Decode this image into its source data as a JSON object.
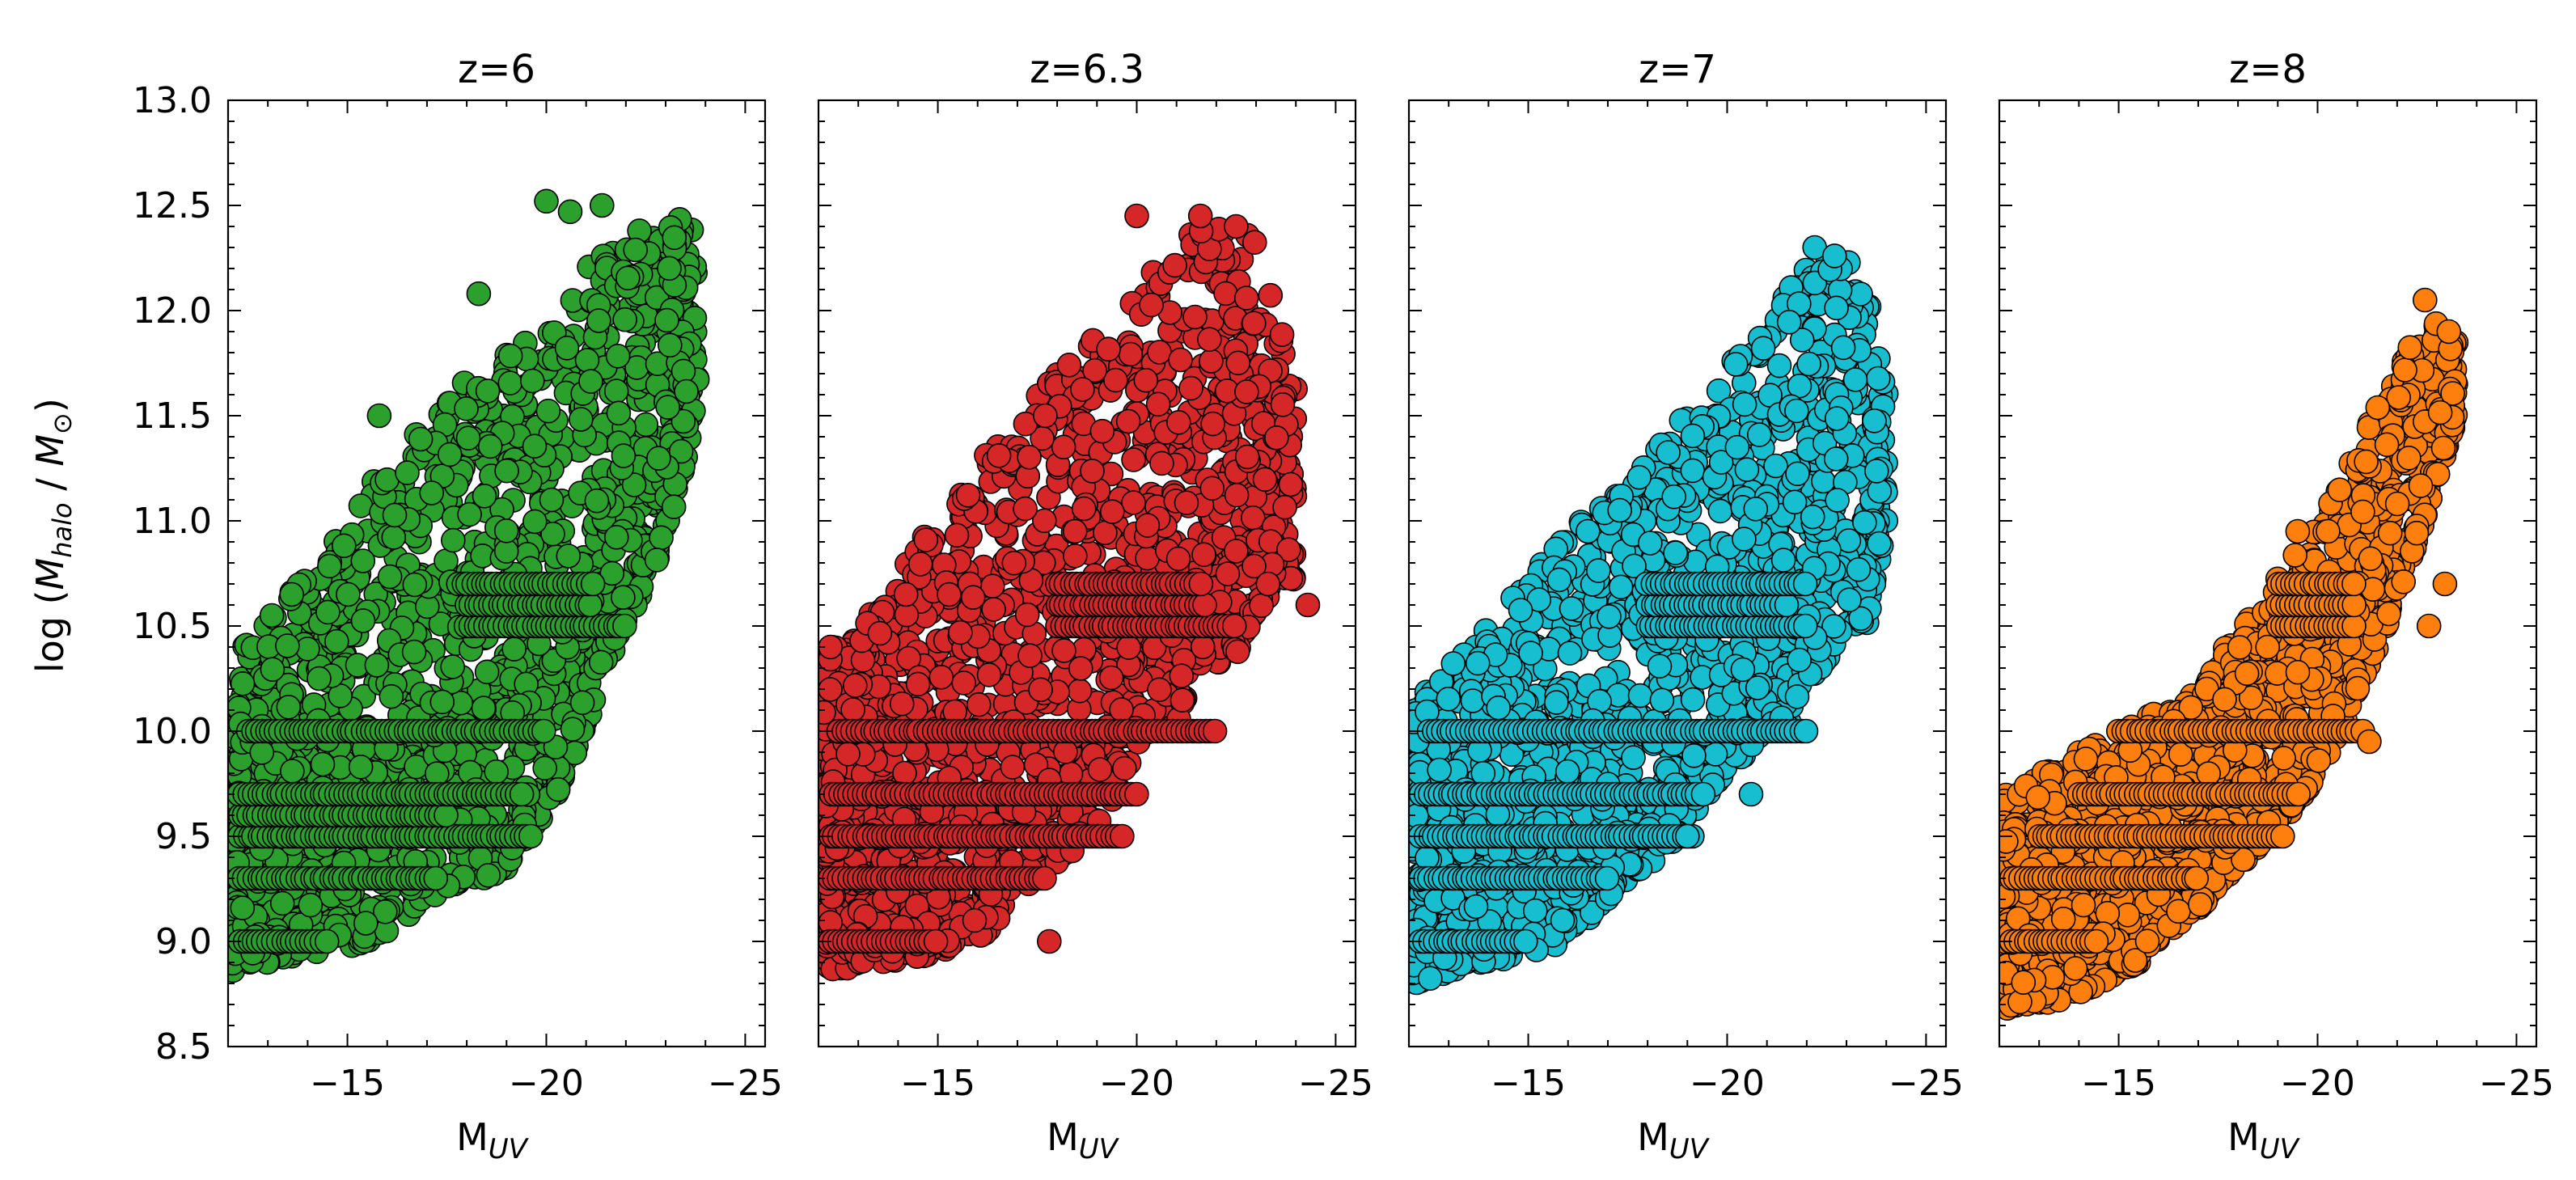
{
  "chart_data": [
    {
      "type": "scatter",
      "title": "z=6",
      "xlabel": "M_UV",
      "ylabel": "log(M_halo/M_⊙)",
      "xlim": [
        -12,
        -25.5
      ],
      "ylim": [
        8.5,
        13.0
      ],
      "xticks": [
        -15,
        -20,
        -25
      ],
      "yticks": [
        8.5,
        9.0,
        9.5,
        10.0,
        10.5,
        11.0,
        11.5,
        12.0,
        12.5,
        13.0
      ],
      "color": "#2ca02c",
      "approx_points": {
        "x": [
          -12.1,
          -12.5,
          -13.0,
          -13.5,
          -14.0,
          -14.5,
          -15.0,
          -15.5,
          -16.0,
          -16.5,
          -17.0,
          -17.5,
          -18.0,
          -18.5,
          -19.0,
          -19.5,
          -20.0,
          -20.5,
          -21.0,
          -21.5,
          -22.0,
          -22.5,
          -23.0,
          -23.5,
          -23.8
        ],
        "y_low": [
          8.85,
          8.9,
          8.9,
          8.92,
          8.95,
          8.95,
          8.97,
          9.0,
          9.0,
          9.1,
          9.2,
          9.25,
          9.3,
          9.3,
          9.35,
          9.5,
          9.6,
          9.8,
          10.0,
          10.3,
          10.5,
          10.7,
          10.9,
          11.3,
          11.6
        ],
        "y_high": [
          10.3,
          10.45,
          10.55,
          10.65,
          10.75,
          10.85,
          11.0,
          11.2,
          11.3,
          11.35,
          11.5,
          11.55,
          11.7,
          11.7,
          11.8,
          11.85,
          11.9,
          12.0,
          12.2,
          12.3,
          12.35,
          12.4,
          12.45,
          12.45,
          12.4
        ]
      },
      "outliers": [
        {
          "x": -20.0,
          "y": 12.52
        },
        {
          "x": -20.6,
          "y": 12.47
        },
        {
          "x": -21.4,
          "y": 12.5
        },
        {
          "x": -18.3,
          "y": 12.08
        },
        {
          "x": -15.8,
          "y": 11.5
        },
        {
          "x": -13.1,
          "y": 10.55
        },
        {
          "x": -13.6,
          "y": 10.65
        }
      ],
      "horizontal_bands": [
        {
          "y": 9.0,
          "x_from": -12.3,
          "x_to": -14.5
        },
        {
          "y": 9.3,
          "x_from": -12.3,
          "x_to": -17.3
        },
        {
          "y": 9.5,
          "x_from": -12.3,
          "x_to": -19.7
        },
        {
          "y": 9.6,
          "x_from": -12.3,
          "x_to": -17.5
        },
        {
          "y": 9.7,
          "x_from": -12.3,
          "x_to": -19.5
        },
        {
          "y": 10.0,
          "x_from": -12.5,
          "x_to": -20.0
        },
        {
          "y": 10.5,
          "x_from": -18.0,
          "x_to": -22.0
        },
        {
          "y": 10.6,
          "x_from": -18.0,
          "x_to": -21.2
        },
        {
          "y": 10.7,
          "x_from": -17.8,
          "x_to": -21.2
        }
      ]
    },
    {
      "type": "scatter",
      "title": "z=6.3",
      "xlabel": "M_UV",
      "xlim": [
        -12,
        -25.5
      ],
      "ylim": [
        8.5,
        13.0
      ],
      "xticks": [
        -15,
        -20,
        -25
      ],
      "color": "#d62728",
      "approx_points": {
        "x": [
          -12.1,
          -12.5,
          -13.0,
          -13.5,
          -14.0,
          -14.5,
          -15.0,
          -15.5,
          -16.0,
          -16.5,
          -17.0,
          -17.5,
          -18.0,
          -18.5,
          -19.0,
          -19.5,
          -20.0,
          -20.5,
          -21.0,
          -21.5,
          -22.0,
          -22.5,
          -23.0,
          -23.5,
          -24.0
        ],
        "y_low": [
          8.9,
          8.85,
          8.9,
          8.9,
          8.9,
          8.92,
          8.95,
          8.97,
          9.0,
          9.1,
          9.2,
          9.3,
          9.35,
          9.45,
          9.55,
          9.7,
          9.85,
          10.0,
          10.0,
          10.3,
          10.3,
          10.35,
          10.55,
          10.7,
          10.7
        ],
        "y_high": [
          10.4,
          10.4,
          10.5,
          10.6,
          10.75,
          10.9,
          11.0,
          11.1,
          11.25,
          11.4,
          11.5,
          11.6,
          11.7,
          11.8,
          11.9,
          12.0,
          12.1,
          12.2,
          12.3,
          12.4,
          12.4,
          12.4,
          12.35,
          12.0,
          11.7
        ]
      },
      "outliers": [
        {
          "x": -20.0,
          "y": 12.45
        },
        {
          "x": -21.6,
          "y": 12.45
        },
        {
          "x": -22.5,
          "y": 12.4
        },
        {
          "x": -17.7,
          "y": 11.5
        },
        {
          "x": -12.3,
          "y": 10.4
        },
        {
          "x": -14.2,
          "y": 10.65
        },
        {
          "x": -17.8,
          "y": 9.0
        },
        {
          "x": -23.3,
          "y": 10.7
        },
        {
          "x": -24.3,
          "y": 10.6
        }
      ],
      "horizontal_bands": [
        {
          "y": 9.0,
          "x_from": -12.3,
          "x_to": -15.0
        },
        {
          "y": 9.3,
          "x_from": -12.3,
          "x_to": -17.8
        },
        {
          "y": 9.5,
          "x_from": -12.3,
          "x_to": -19.7
        },
        {
          "y": 9.7,
          "x_from": -12.3,
          "x_to": -20.0
        },
        {
          "y": 10.0,
          "x_from": -12.5,
          "x_to": -22.0
        },
        {
          "y": 10.5,
          "x_from": -18.0,
          "x_to": -22.5
        },
        {
          "y": 10.6,
          "x_from": -18.0,
          "x_to": -21.8
        },
        {
          "y": 10.7,
          "x_from": -18.0,
          "x_to": -21.7
        }
      ]
    },
    {
      "type": "scatter",
      "title": "z=7",
      "xlabel": "M_UV",
      "xlim": [
        -12,
        -25.5
      ],
      "ylim": [
        8.5,
        13.0
      ],
      "xticks": [
        -15,
        -20,
        -25
      ],
      "color": "#17becf",
      "approx_points": {
        "x": [
          -12.1,
          -12.5,
          -13.0,
          -13.5,
          -14.0,
          -14.5,
          -15.0,
          -15.5,
          -16.0,
          -16.5,
          -17.0,
          -17.5,
          -18.0,
          -18.5,
          -19.0,
          -19.5,
          -20.0,
          -20.5,
          -21.0,
          -21.5,
          -22.0,
          -22.5,
          -23.0,
          -23.5,
          -24.0
        ],
        "y_low": [
          8.8,
          8.8,
          8.85,
          8.9,
          8.9,
          8.92,
          8.95,
          8.97,
          9.0,
          9.1,
          9.2,
          9.3,
          9.35,
          9.45,
          9.55,
          9.7,
          9.8,
          9.9,
          10.0,
          10.0,
          10.25,
          10.3,
          10.5,
          10.5,
          11.0
        ],
        "y_high": [
          10.1,
          10.2,
          10.3,
          10.4,
          10.5,
          10.6,
          10.75,
          10.85,
          10.95,
          11.05,
          11.1,
          11.2,
          11.3,
          11.4,
          11.55,
          11.65,
          11.75,
          11.85,
          12.0,
          12.1,
          12.2,
          12.25,
          12.25,
          12.1,
          11.7
        ]
      },
      "outliers": [
        {
          "x": -22.2,
          "y": 12.3
        },
        {
          "x": -22.7,
          "y": 12.26
        },
        {
          "x": -16.5,
          "y": 10.95
        },
        {
          "x": -17.3,
          "y": 11.05
        },
        {
          "x": -19.0,
          "y": 9.5
        },
        {
          "x": -20.6,
          "y": 9.7
        }
      ],
      "horizontal_bands": [
        {
          "y": 9.0,
          "x_from": -12.3,
          "x_to": -15.0
        },
        {
          "y": 9.3,
          "x_from": -12.3,
          "x_to": -17.0
        },
        {
          "y": 9.5,
          "x_from": -12.3,
          "x_to": -19.2
        },
        {
          "y": 9.7,
          "x_from": -12.3,
          "x_to": -19.5
        },
        {
          "y": 10.0,
          "x_from": -12.5,
          "x_to": -22.0
        },
        {
          "y": 10.5,
          "x_from": -18.0,
          "x_to": -22.0
        },
        {
          "y": 10.6,
          "x_from": -18.0,
          "x_to": -21.6
        },
        {
          "y": 10.7,
          "x_from": -18.0,
          "x_to": -22.0
        }
      ]
    },
    {
      "type": "scatter",
      "title": "z=8",
      "xlabel": "M_UV",
      "xlim": [
        -12,
        -25.5
      ],
      "ylim": [
        8.5,
        13.0
      ],
      "xticks": [
        -15,
        -20,
        -25
      ],
      "color": "#ff7f0e",
      "approx_points": {
        "x": [
          -12.1,
          -12.5,
          -13.0,
          -13.5,
          -14.0,
          -14.5,
          -15.0,
          -15.5,
          -16.0,
          -16.5,
          -17.0,
          -17.5,
          -18.0,
          -18.5,
          -19.0,
          -19.5,
          -20.0,
          -20.5,
          -21.0,
          -21.5,
          -22.0,
          -22.5,
          -23.0,
          -23.5
        ],
        "y_low": [
          8.65,
          8.7,
          8.7,
          8.72,
          8.75,
          8.8,
          8.85,
          8.9,
          9.0,
          9.05,
          9.15,
          9.25,
          9.35,
          9.45,
          9.55,
          9.65,
          9.8,
          9.95,
          10.2,
          10.4,
          10.6,
          10.9,
          11.2,
          11.5
        ],
        "y_high": [
          9.7,
          9.75,
          9.8,
          9.85,
          9.9,
          9.95,
          10.0,
          10.05,
          10.1,
          10.15,
          10.25,
          10.35,
          10.5,
          10.6,
          10.75,
          10.85,
          11.0,
          11.15,
          11.35,
          11.55,
          11.75,
          11.9,
          11.95,
          11.85
        ]
      },
      "outliers": [
        {
          "x": -22.7,
          "y": 12.05
        },
        {
          "x": -23.3,
          "y": 11.9
        },
        {
          "x": -19.5,
          "y": 10.95
        },
        {
          "x": -21.3,
          "y": 9.95
        },
        {
          "x": -23.2,
          "y": 10.7
        },
        {
          "x": -22.8,
          "y": 10.5
        }
      ],
      "horizontal_bands": [
        {
          "y": 9.0,
          "x_from": -12.3,
          "x_to": -14.5
        },
        {
          "y": 9.3,
          "x_from": -12.3,
          "x_to": -17.0
        },
        {
          "y": 9.5,
          "x_from": -13.0,
          "x_to": -19.2
        },
        {
          "y": 9.7,
          "x_from": -14.0,
          "x_to": -19.6
        },
        {
          "y": 10.0,
          "x_from": -15.0,
          "x_to": -21.2
        },
        {
          "y": 10.5,
          "x_from": -19.0,
          "x_to": -21.0
        },
        {
          "y": 10.6,
          "x_from": -19.0,
          "x_to": -21.0
        },
        {
          "y": 10.7,
          "x_from": -19.0,
          "x_to": -21.0
        }
      ]
    }
  ]
}
